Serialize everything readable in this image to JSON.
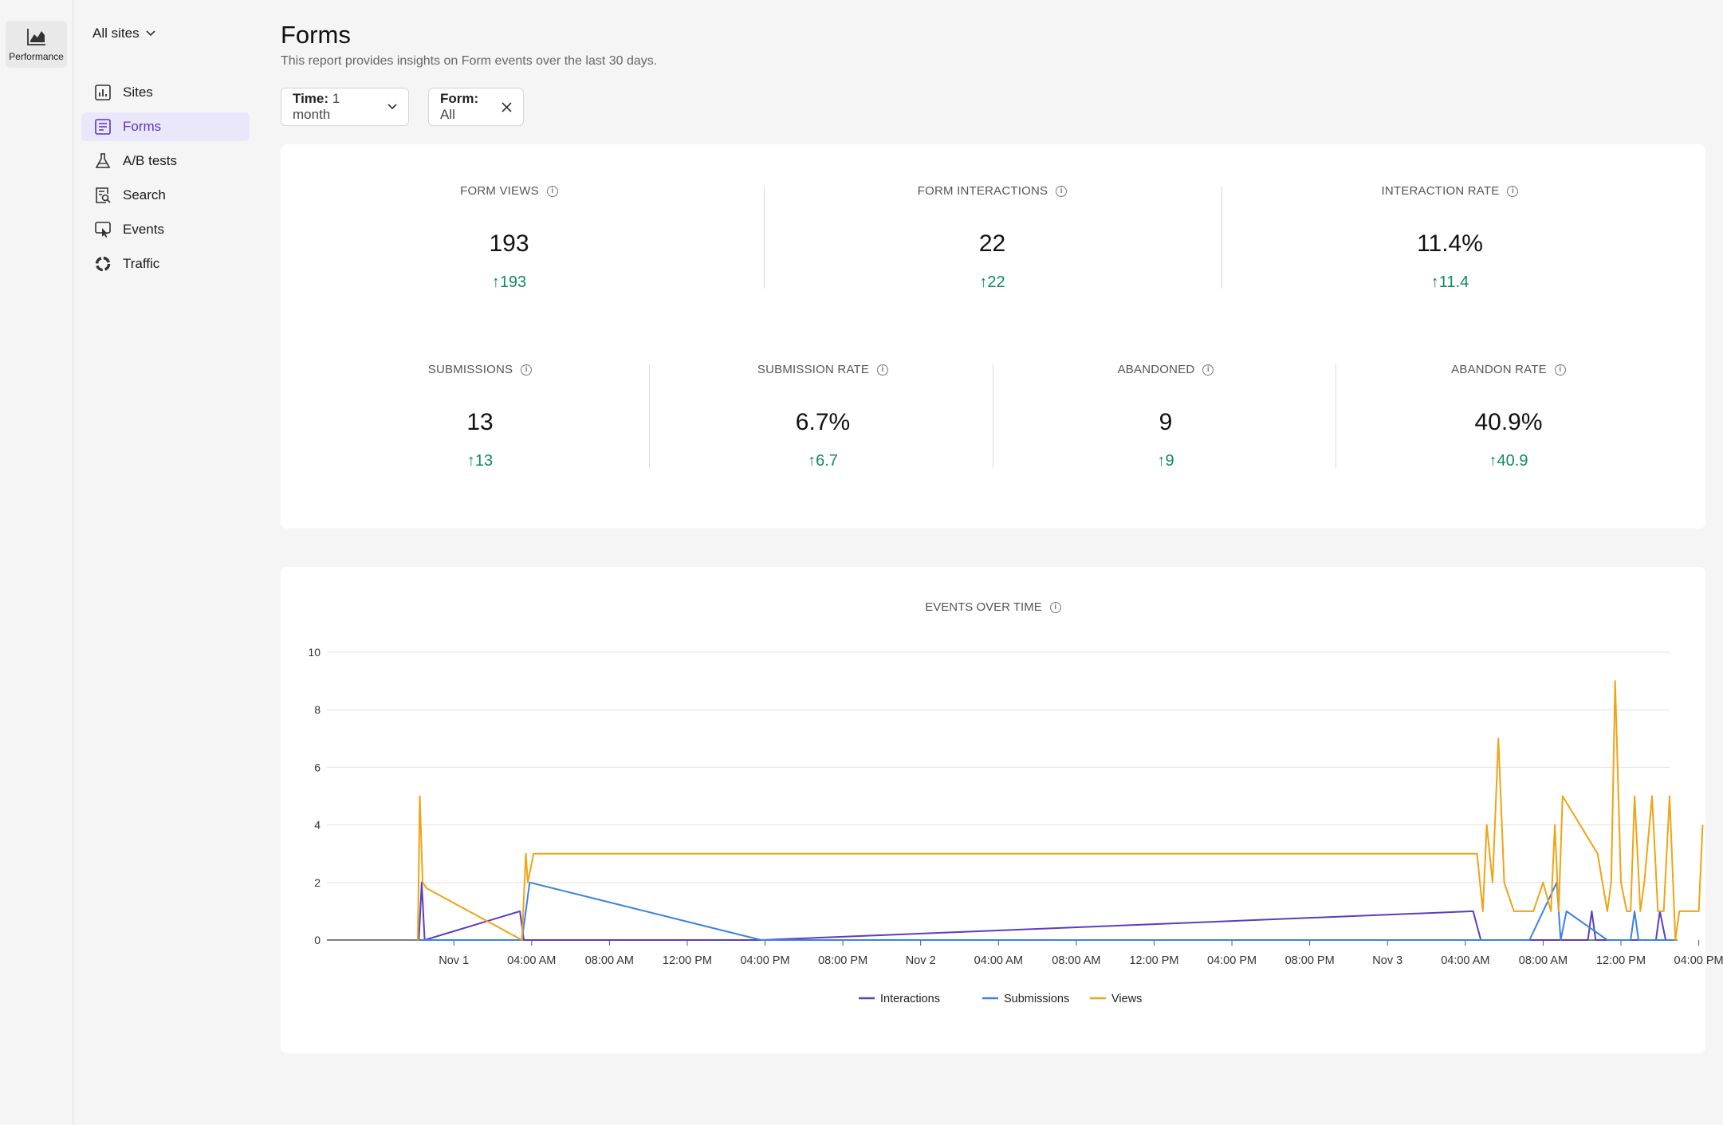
{
  "rail": {
    "label": "Performance"
  },
  "nav": {
    "site_selector": "All sites",
    "items": [
      {
        "label": "Sites",
        "icon": "bar-chart-icon"
      },
      {
        "label": "Forms",
        "icon": "form-icon",
        "active": true
      },
      {
        "label": "A/B tests",
        "icon": "flask-icon"
      },
      {
        "label": "Search",
        "icon": "search-document-icon"
      },
      {
        "label": "Events",
        "icon": "events-icon"
      },
      {
        "label": "Traffic",
        "icon": "traffic-icon"
      }
    ]
  },
  "header": {
    "title": "Forms",
    "subtitle": "This report provides insights on Form events over the last 30 days."
  },
  "filters": {
    "time_key": "Time:",
    "time_value": "1 month",
    "form_key": "Form:",
    "form_value": "All"
  },
  "metrics_row1": [
    {
      "label": "FORM VIEWS",
      "value": "193",
      "delta": "193"
    },
    {
      "label": "FORM INTERACTIONS",
      "value": "22",
      "delta": "22"
    },
    {
      "label": "INTERACTION RATE",
      "value": "11.4%",
      "delta": "11.4"
    }
  ],
  "metrics_row2": [
    {
      "label": "SUBMISSIONS",
      "value": "13",
      "delta": "13"
    },
    {
      "label": "SUBMISSION RATE",
      "value": "6.7%",
      "delta": "6.7"
    },
    {
      "label": "ABANDONED",
      "value": "9",
      "delta": "9"
    },
    {
      "label": "ABANDON RATE",
      "value": "40.9%",
      "delta": "40.9"
    }
  ],
  "colors": {
    "accent": "#5b32c8",
    "positive": "#0f8a5f",
    "interactions": "#5b3cc4",
    "submissions": "#3b82e6",
    "views": "#f0a314"
  },
  "chart_data": {
    "type": "line",
    "title": "EVENTS OVER TIME",
    "x_unit": "hours since Nov 1 00:00",
    "xlim": [
      -5.5,
      62.5
    ],
    "ylim": [
      0,
      10
    ],
    "y_ticks": [
      0,
      2,
      4,
      6,
      8,
      10
    ],
    "x_ticks": [
      {
        "x": 0,
        "label": "Nov 1"
      },
      {
        "x": 4,
        "label": "04:00 AM"
      },
      {
        "x": 8,
        "label": "08:00 AM"
      },
      {
        "x": 12,
        "label": "12:00 PM"
      },
      {
        "x": 16,
        "label": "04:00 PM"
      },
      {
        "x": 20,
        "label": "08:00 PM"
      },
      {
        "x": 24,
        "label": "Nov 2"
      },
      {
        "x": 28,
        "label": "04:00 AM"
      },
      {
        "x": 32,
        "label": "08:00 AM"
      },
      {
        "x": 36,
        "label": "12:00 PM"
      },
      {
        "x": 40,
        "label": "04:00 PM"
      },
      {
        "x": 44,
        "label": "08:00 PM"
      },
      {
        "x": 48,
        "label": "Nov 3"
      },
      {
        "x": 52,
        "label": "04:00 AM"
      },
      {
        "x": 56,
        "label": "08:00 AM"
      },
      {
        "x": 60,
        "label": "12:00 PM"
      },
      {
        "x": 64,
        "label": "04:00 PM"
      }
    ],
    "grid": true,
    "legend": "bottom-center",
    "series": [
      {
        "name": "Interactions",
        "color": "#5b3cc4",
        "points": [
          [
            -1.8,
            0
          ],
          [
            -1.65,
            2
          ],
          [
            -1.5,
            0
          ],
          [
            3.4,
            1
          ],
          [
            3.6,
            0
          ],
          [
            15.8,
            0
          ],
          [
            52.4,
            1
          ],
          [
            52.8,
            0
          ],
          [
            58.3,
            0
          ],
          [
            58.5,
            1
          ],
          [
            58.7,
            0
          ],
          [
            61.8,
            0
          ],
          [
            62.0,
            1
          ],
          [
            62.3,
            0
          ]
        ]
      },
      {
        "name": "Submissions",
        "color": "#3b82e6",
        "points": [
          [
            -1.8,
            0
          ],
          [
            3.5,
            0
          ],
          [
            3.9,
            2
          ],
          [
            15.8,
            0
          ],
          [
            55.3,
            0
          ],
          [
            56.7,
            2
          ],
          [
            56.9,
            0
          ],
          [
            57.2,
            1
          ],
          [
            59.3,
            0
          ],
          [
            60.5,
            0
          ],
          [
            60.7,
            1
          ],
          [
            60.9,
            0
          ],
          [
            62.3,
            0
          ],
          [
            62.9,
            0
          ]
        ]
      },
      {
        "name": "Views",
        "color": "#f0a314",
        "points": [
          [
            -1.85,
            0
          ],
          [
            -1.75,
            5
          ],
          [
            -1.6,
            2
          ],
          [
            -1.4,
            1.8
          ],
          [
            3.5,
            0
          ],
          [
            3.7,
            3
          ],
          [
            3.8,
            2
          ],
          [
            4.1,
            3
          ],
          [
            52.6,
            3
          ],
          [
            52.9,
            1
          ],
          [
            53.1,
            4
          ],
          [
            53.4,
            2
          ],
          [
            53.7,
            7
          ],
          [
            54.0,
            2
          ],
          [
            54.5,
            1
          ],
          [
            55.5,
            1
          ],
          [
            56.0,
            2
          ],
          [
            56.4,
            1
          ],
          [
            56.6,
            4
          ],
          [
            56.8,
            1
          ],
          [
            57.0,
            5
          ],
          [
            58.8,
            3
          ],
          [
            59.3,
            1
          ],
          [
            59.5,
            2
          ],
          [
            59.7,
            9
          ],
          [
            60.0,
            2
          ],
          [
            60.3,
            1
          ],
          [
            60.5,
            1
          ],
          [
            60.7,
            5
          ],
          [
            61.0,
            1
          ],
          [
            61.2,
            2
          ],
          [
            61.6,
            5
          ],
          [
            61.9,
            1
          ],
          [
            62.2,
            1
          ],
          [
            62.5,
            5
          ],
          [
            62.8,
            0
          ],
          [
            63.0,
            1
          ],
          [
            64.0,
            1
          ],
          [
            64.2,
            4
          ]
        ]
      }
    ]
  }
}
